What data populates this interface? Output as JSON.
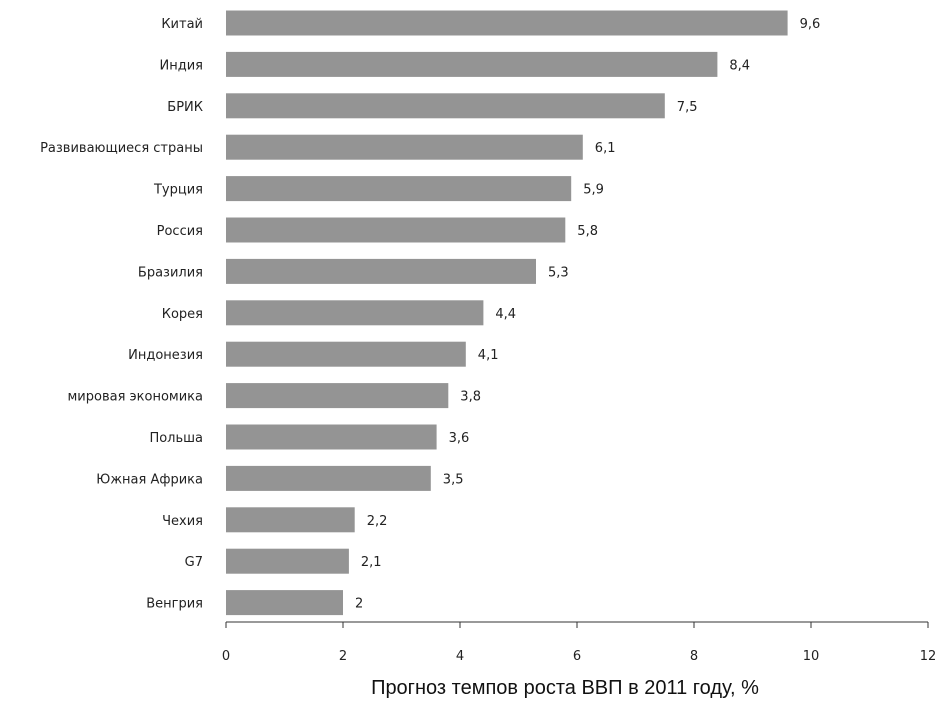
{
  "chart_data": {
    "type": "bar",
    "orientation": "horizontal",
    "categories": [
      "Китай",
      "Индия",
      "БРИК",
      "Развивающиеся страны",
      "Турция",
      "Россия",
      "Бразилия",
      "Корея",
      "Индонезия",
      "мировая экономика",
      "Польша",
      "Южная Африка",
      "Чехия",
      "G7",
      "Венгрия"
    ],
    "values": [
      9.6,
      8.4,
      7.5,
      6.1,
      5.9,
      5.8,
      5.3,
      4.4,
      4.1,
      3.8,
      3.6,
      3.5,
      2.2,
      2.1,
      2
    ],
    "value_labels": [
      "9,6",
      "8,4",
      "7,5",
      "6,1",
      "5,9",
      "5,8",
      "5,3",
      "4,4",
      "4,1",
      "3,8",
      "3,6",
      "3,5",
      "2,2",
      "2,1",
      "2"
    ],
    "title": "",
    "xlabel": "Прогноз темпов роста ВВП в 2011 году, %",
    "ylabel": "",
    "xlim": [
      0,
      12
    ],
    "xticks": [
      0,
      2,
      4,
      6,
      8,
      10,
      12
    ],
    "grid": false,
    "legend": "none",
    "colors": {
      "bar": "#949494",
      "axis": "#333333",
      "text": "#222222"
    }
  }
}
